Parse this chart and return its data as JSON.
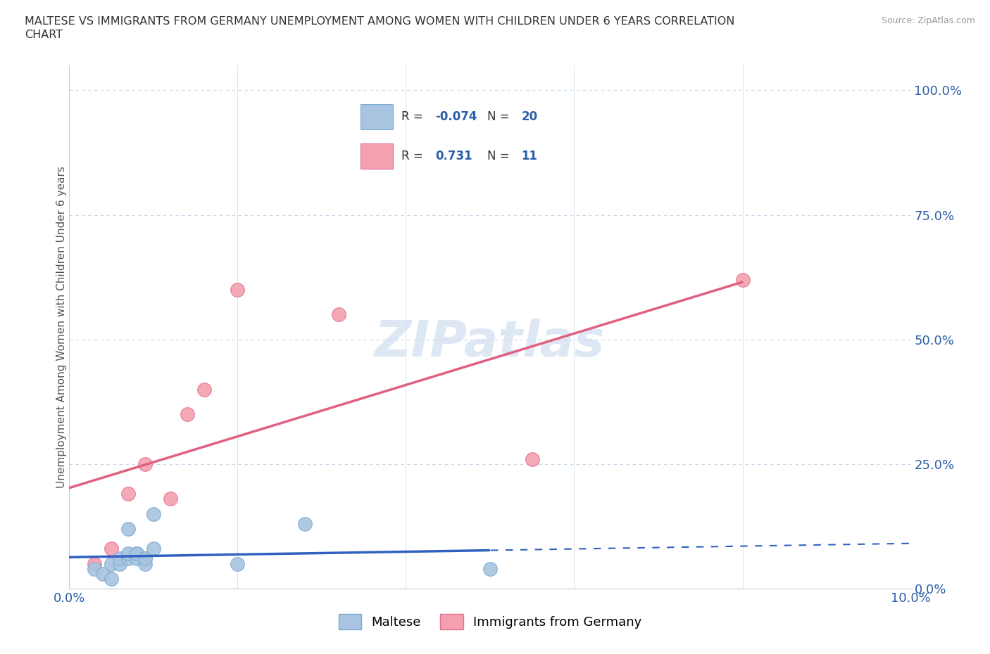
{
  "title_line1": "MALTESE VS IMMIGRANTS FROM GERMANY UNEMPLOYMENT AMONG WOMEN WITH CHILDREN UNDER 6 YEARS CORRELATION",
  "title_line2": "CHART",
  "source": "Source: ZipAtlas.com",
  "ylabel": "Unemployment Among Women with Children Under 6 years",
  "xlim": [
    0.0,
    0.1
  ],
  "ylim": [
    0.0,
    1.05
  ],
  "yticks": [
    0.0,
    0.25,
    0.5,
    0.75,
    1.0
  ],
  "ytick_labels": [
    "0.0%",
    "25.0%",
    "50.0%",
    "75.0%",
    "100.0%"
  ],
  "xtick_positions": [
    0.0,
    0.02,
    0.04,
    0.06,
    0.08,
    0.1
  ],
  "xtick_labels": [
    "0.0%",
    "",
    "",
    "",
    "",
    "10.0%"
  ],
  "maltese_color": "#a8c4e0",
  "maltese_edge_color": "#7aaace",
  "germany_color": "#f4a0b0",
  "germany_edge_color": "#e07090",
  "trend_blue": "#3060c0",
  "trend_pink": "#e06080",
  "maltese_R": -0.074,
  "maltese_N": 20,
  "germany_R": 0.731,
  "germany_N": 11,
  "maltese_x": [
    0.003,
    0.004,
    0.005,
    0.005,
    0.006,
    0.006,
    0.007,
    0.007,
    0.007,
    0.008,
    0.008,
    0.008,
    0.009,
    0.009,
    0.009,
    0.01,
    0.01,
    0.02,
    0.028,
    0.05
  ],
  "maltese_y": [
    0.04,
    0.03,
    0.05,
    0.02,
    0.05,
    0.06,
    0.06,
    0.07,
    0.12,
    0.07,
    0.06,
    0.07,
    0.06,
    0.05,
    0.06,
    0.08,
    0.15,
    0.05,
    0.13,
    0.04
  ],
  "germany_x": [
    0.003,
    0.005,
    0.007,
    0.009,
    0.012,
    0.014,
    0.016,
    0.02,
    0.032,
    0.055,
    0.08
  ],
  "germany_y": [
    0.05,
    0.08,
    0.19,
    0.25,
    0.18,
    0.35,
    0.4,
    0.6,
    0.55,
    0.26,
    0.62
  ],
  "legend_text_color": "#2b5fa8",
  "legend_label_color": "#333333",
  "watermark_color": "#c8d8ed",
  "background_color": "#ffffff",
  "grid_color": "#c8d8e8",
  "spine_color": "#cccccc",
  "tick_color": "#2b5fa8",
  "title_color": "#333333",
  "source_color": "#999999"
}
